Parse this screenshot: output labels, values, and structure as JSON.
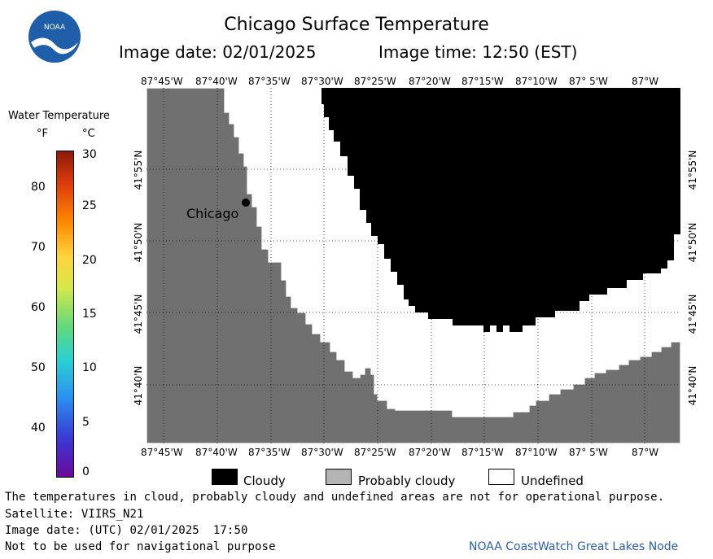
{
  "header": {
    "title": "Chicago Surface Temperature",
    "image_date": "Image date: 02/01/2025",
    "image_time": "Image time: 12:50 (EST)"
  },
  "logo": {
    "text": "NOAA",
    "color": "#1f5ea8"
  },
  "colorbar": {
    "title": "Water Temperature",
    "unit_f": "°F",
    "unit_c": "°C",
    "f_ticks": [
      "80",
      "70",
      "60",
      "50",
      "40"
    ],
    "c_ticks": [
      "30",
      "25",
      "20",
      "15",
      "10",
      "5",
      "0"
    ]
  },
  "map": {
    "lon_labels": [
      "87°45'W",
      "87°40'W",
      "87°35'W",
      "87°30'W",
      "87°25'W",
      "87°20'W",
      "87°15'W",
      "87°10'W",
      "87° 5'W",
      "87°W"
    ],
    "lat_labels": [
      "41°55'N",
      "41°50'N",
      "41°45'N",
      "41°40'N"
    ],
    "city_label": "Chicago",
    "colors": {
      "land": "#707070",
      "cloudy": "#000000",
      "undefined": "#ffffff"
    }
  },
  "legend": {
    "cloudy": "Cloudy",
    "probably_cloudy": "Probably cloudy",
    "undefined": "Undefined"
  },
  "footer": {
    "disclaimer": "The temperatures in cloud, probably cloudy and undefined areas are not for operational purpose.",
    "satellite": "Satellite: VIIRS_N21",
    "utc_date": "Image date: (UTC) 02/01/2025  17:50",
    "navigation": "Not to be used for navigational purpose",
    "credit": "NOAA CoastWatch Great Lakes Node",
    "credit_color": "#2a5db0"
  }
}
